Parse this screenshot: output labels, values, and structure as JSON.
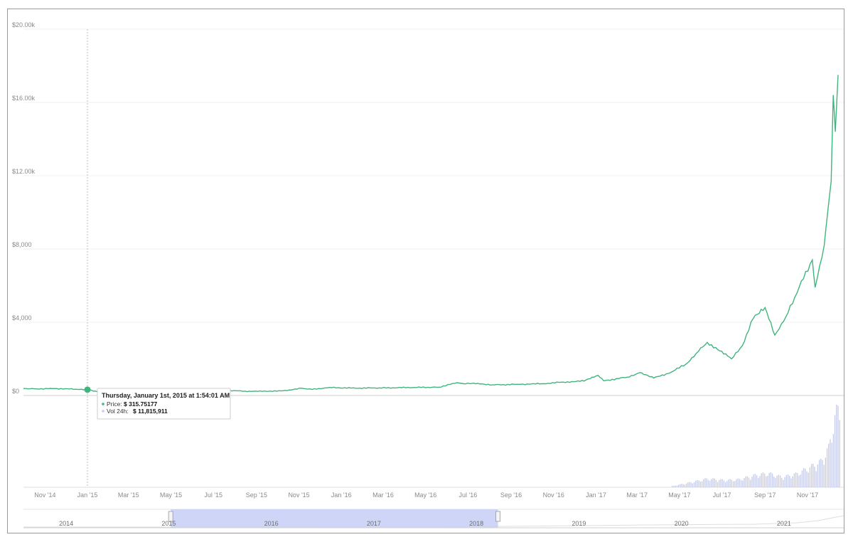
{
  "chart_data": {
    "type": "line",
    "y_tick_labels": [
      "$0",
      "$4,000",
      "$8,000",
      "$12.00k",
      "$16.00k",
      "$20.00k"
    ],
    "y_tick_values": [
      0,
      4000,
      8000,
      12000,
      16000,
      20000
    ],
    "ylim": [
      0,
      20000
    ],
    "x_tick_labels": [
      "Nov '14",
      "Jan '15",
      "Mar '15",
      "May '15",
      "Jul '15",
      "Sep '15",
      "Nov '15",
      "Jan '16",
      "Mar '16",
      "May '16",
      "Jul '16",
      "Sep '16",
      "Nov '16",
      "Jan '17",
      "Mar '17",
      "May '17",
      "Jul '17",
      "Sep '17",
      "Nov '17"
    ],
    "x_tick_dates": [
      "2014-11-01",
      "2015-01-01",
      "2015-03-01",
      "2015-05-01",
      "2015-07-01",
      "2015-09-01",
      "2015-11-01",
      "2016-01-01",
      "2016-03-01",
      "2016-05-01",
      "2016-07-01",
      "2016-09-01",
      "2016-11-01",
      "2017-01-01",
      "2017-03-01",
      "2017-05-01",
      "2017-07-01",
      "2017-09-01",
      "2017-11-01"
    ],
    "xlim": [
      "2014-10-01",
      "2017-12-17"
    ],
    "grid": true,
    "series": [
      {
        "color": "#3fb57c",
        "points": [
          [
            "2014-10-01",
            380
          ],
          [
            "2014-10-20",
            360
          ],
          [
            "2014-11-15",
            380
          ],
          [
            "2014-12-15",
            340
          ],
          [
            "2015-01-01",
            316
          ],
          [
            "2015-01-15",
            210
          ],
          [
            "2015-02-15",
            240
          ],
          [
            "2015-04-01",
            250
          ],
          [
            "2015-05-15",
            240
          ],
          [
            "2015-07-15",
            280
          ],
          [
            "2015-08-25",
            220
          ],
          [
            "2015-10-15",
            260
          ],
          [
            "2015-11-04",
            400
          ],
          [
            "2015-11-20",
            330
          ],
          [
            "2015-12-15",
            440
          ],
          [
            "2016-01-15",
            400
          ],
          [
            "2016-02-15",
            410
          ],
          [
            "2016-03-15",
            420
          ],
          [
            "2016-04-15",
            440
          ],
          [
            "2016-05-20",
            450
          ],
          [
            "2016-06-15",
            700
          ],
          [
            "2016-06-25",
            640
          ],
          [
            "2016-07-15",
            660
          ],
          [
            "2016-08-05",
            580
          ],
          [
            "2016-09-15",
            610
          ],
          [
            "2016-10-15",
            640
          ],
          [
            "2016-11-15",
            730
          ],
          [
            "2016-12-15",
            790
          ],
          [
            "2017-01-04",
            1100
          ],
          [
            "2017-01-12",
            800
          ],
          [
            "2017-02-15",
            1000
          ],
          [
            "2017-03-05",
            1250
          ],
          [
            "2017-03-25",
            950
          ],
          [
            "2017-04-15",
            1200
          ],
          [
            "2017-05-10",
            1700
          ],
          [
            "2017-05-25",
            2300
          ],
          [
            "2017-06-10",
            2900
          ],
          [
            "2017-06-25",
            2500
          ],
          [
            "2017-07-15",
            2000
          ],
          [
            "2017-07-30",
            2700
          ],
          [
            "2017-08-15",
            4200
          ],
          [
            "2017-09-01",
            4800
          ],
          [
            "2017-09-15",
            3300
          ],
          [
            "2017-10-01",
            4300
          ],
          [
            "2017-10-20",
            5900
          ],
          [
            "2017-11-08",
            7400
          ],
          [
            "2017-11-12",
            5900
          ],
          [
            "2017-11-25",
            8200
          ],
          [
            "2017-11-30",
            10000
          ],
          [
            "2017-12-05",
            11700
          ],
          [
            "2017-12-08",
            16400
          ],
          [
            "2017-12-11",
            14400
          ],
          [
            "2017-12-15",
            17500
          ]
        ]
      }
    ],
    "volume": {
      "color": "#c5cbe8",
      "points": [
        [
          "2017-04-20",
          150
        ],
        [
          "2017-05-15",
          600
        ],
        [
          "2017-06-10",
          1100
        ],
        [
          "2017-07-05",
          900
        ],
        [
          "2017-07-25",
          1000
        ],
        [
          "2017-08-15",
          1500
        ],
        [
          "2017-09-05",
          1800
        ],
        [
          "2017-09-25",
          1300
        ],
        [
          "2017-10-15",
          1700
        ],
        [
          "2017-11-05",
          2600
        ],
        [
          "2017-11-20",
          3300
        ],
        [
          "2017-12-01",
          5000
        ],
        [
          "2017-12-08",
          8500
        ],
        [
          "2017-12-15",
          10000
        ]
      ]
    },
    "tooltip": {
      "title": "Thursday, January 1st, 2015 at 1:54:01 AM",
      "price_label": "Price:",
      "price_value": "$ 315.75177",
      "vol_label": "Vol 24h:",
      "vol_value": "$ 11,815,911"
    },
    "hover_date": "2015-01-01",
    "hover_value": 315.75177
  },
  "navigator": {
    "year_labels": [
      "2014",
      "2015",
      "2016",
      "2017",
      "2018",
      "2019",
      "2020",
      "2021"
    ],
    "selected_fraction": [
      0.1795,
      0.5785
    ]
  }
}
